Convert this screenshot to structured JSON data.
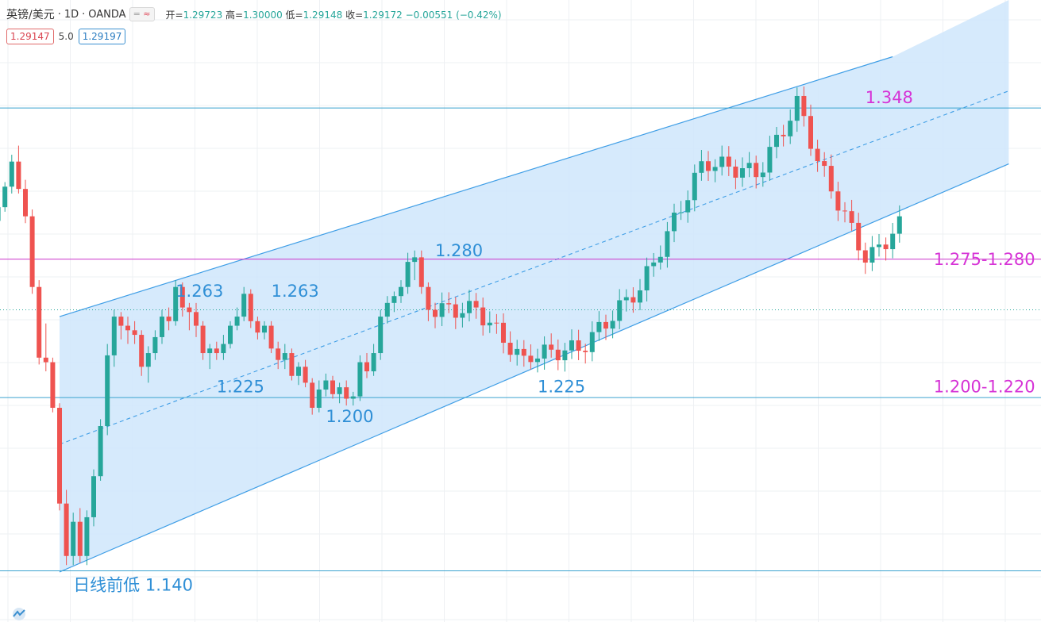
{
  "header": {
    "symbol": "英镑/美元",
    "sep1": "·",
    "interval": "1D",
    "sep2": "·",
    "source": "OANDA",
    "btn_left": "=",
    "btn_right": "≈",
    "open_label": "开=",
    "open_value": "1.29723",
    "high_label": "高=",
    "high_value": "1.30000",
    "low_label": "低=",
    "low_value": "1.29148",
    "close_label": "收=",
    "close_value": "1.29172",
    "change": "−0.00551 (−0.42%)"
  },
  "prices": {
    "sell": "1.29147",
    "spread": "5.0",
    "buy": "1.29197"
  },
  "colors": {
    "up": "#26a69a",
    "down": "#ef5350",
    "channel_fill": "#cfe6fb",
    "channel_line": "#3f9ee6",
    "hline_blue": "#3ba3cf",
    "hline_magenta": "#cc33cc",
    "label_blue": "#2f8fd6",
    "label_magenta": "#d633d6",
    "grid": "#eef0f3"
  },
  "chart_data": {
    "type": "candlestick",
    "title": "英镑/美元 · 1D · OANDA",
    "ylim": [
      1.125,
      1.37
    ],
    "horizontal_levels": [
      {
        "value": 1.3435,
        "color": "blue"
      },
      {
        "value": 1.2772,
        "color": "magenta"
      },
      {
        "value": 1.2165,
        "color": "blue"
      },
      {
        "value": 1.1405,
        "color": "blue"
      }
    ],
    "channel": {
      "upper": [
        [
          0,
          1.252
        ],
        [
          122,
          1.366
        ]
      ],
      "lower": [
        [
          0,
          1.14
        ],
        [
          139,
          1.319
        ]
      ],
      "mid": [
        [
          0,
          1.196
        ],
        [
          139,
          1.351
        ]
      ],
      "right_edge_bar": 139
    },
    "annotations": [
      {
        "text": "1.348",
        "bar": 118,
        "price": 1.3485,
        "color": "magenta"
      },
      {
        "text": "1.280",
        "bar": 55,
        "price": 1.2812,
        "color": "blue"
      },
      {
        "text": "1.263",
        "bar": 17,
        "price": 1.2635,
        "color": "blue"
      },
      {
        "text": "1.263",
        "bar": 31,
        "price": 1.2635,
        "color": "blue"
      },
      {
        "text": "1.225",
        "bar": 23,
        "price": 1.2215,
        "color": "blue"
      },
      {
        "text": "1.225",
        "bar": 70,
        "price": 1.2215,
        "color": "blue"
      },
      {
        "text": "1.200",
        "bar": 39,
        "price": 1.2085,
        "color": "blue"
      },
      {
        "text": "1.275-1.280",
        "bar": 128,
        "price": 1.2775,
        "color": "magenta"
      },
      {
        "text": "1.200-1.220",
        "bar": 128,
        "price": 1.2215,
        "color": "magenta"
      },
      {
        "text": "日线前低 1.140",
        "bar": 2,
        "price": 1.1345,
        "color": "blue"
      }
    ],
    "candles": [
      [
        1.289,
        1.296,
        1.287,
        1.294
      ],
      [
        1.294,
        1.302,
        1.292,
        1.3
      ],
      [
        1.3,
        1.311,
        1.298,
        1.309
      ],
      [
        1.309,
        1.323,
        1.306,
        1.32
      ],
      [
        1.32,
        1.327,
        1.306,
        1.308
      ],
      [
        1.308,
        1.312,
        1.293,
        1.296
      ],
      [
        1.296,
        1.299,
        1.262,
        1.265
      ],
      [
        1.265,
        1.268,
        1.231,
        1.234
      ],
      [
        1.234,
        1.249,
        1.228,
        1.232
      ],
      [
        1.232,
        1.234,
        1.21,
        1.212
      ],
      [
        1.212,
        1.214,
        1.167,
        1.17
      ],
      [
        1.17,
        1.176,
        1.143,
        1.147
      ],
      [
        1.147,
        1.166,
        1.143,
        1.162
      ],
      [
        1.162,
        1.168,
        1.144,
        1.147
      ],
      [
        1.147,
        1.167,
        1.143,
        1.164
      ],
      [
        1.164,
        1.185,
        1.16,
        1.182
      ],
      [
        1.182,
        1.207,
        1.18,
        1.204
      ],
      [
        1.204,
        1.24,
        1.2,
        1.235
      ],
      [
        1.235,
        1.255,
        1.23,
        1.252
      ],
      [
        1.252,
        1.254,
        1.242,
        1.248
      ],
      [
        1.248,
        1.252,
        1.24,
        1.246
      ],
      [
        1.246,
        1.25,
        1.24,
        1.244
      ],
      [
        1.244,
        1.246,
        1.226,
        1.23
      ],
      [
        1.23,
        1.239,
        1.223,
        1.236
      ],
      [
        1.236,
        1.246,
        1.233,
        1.243
      ],
      [
        1.243,
        1.255,
        1.24,
        1.252
      ],
      [
        1.252,
        1.256,
        1.246,
        1.25
      ],
      [
        1.25,
        1.268,
        1.248,
        1.265
      ],
      [
        1.265,
        1.267,
        1.252,
        1.256
      ],
      [
        1.256,
        1.258,
        1.246,
        1.254
      ],
      [
        1.254,
        1.258,
        1.243,
        1.248
      ],
      [
        1.248,
        1.25,
        1.233,
        1.236
      ],
      [
        1.236,
        1.24,
        1.229,
        1.238
      ],
      [
        1.238,
        1.241,
        1.233,
        1.236
      ],
      [
        1.236,
        1.244,
        1.233,
        1.24
      ],
      [
        1.24,
        1.25,
        1.238,
        1.248
      ],
      [
        1.248,
        1.256,
        1.246,
        1.252
      ],
      [
        1.252,
        1.265,
        1.25,
        1.262
      ],
      [
        1.262,
        1.264,
        1.247,
        1.25
      ],
      [
        1.25,
        1.252,
        1.242,
        1.245
      ],
      [
        1.245,
        1.25,
        1.242,
        1.248
      ],
      [
        1.248,
        1.25,
        1.236,
        1.238
      ],
      [
        1.238,
        1.241,
        1.229,
        1.233
      ],
      [
        1.233,
        1.24,
        1.229,
        1.236
      ],
      [
        1.236,
        1.238,
        1.224,
        1.226
      ],
      [
        1.226,
        1.232,
        1.222,
        1.23
      ],
      [
        1.23,
        1.233,
        1.221,
        1.223
      ],
      [
        1.223,
        1.225,
        1.209,
        1.212
      ],
      [
        1.212,
        1.224,
        1.21,
        1.22
      ],
      [
        1.22,
        1.227,
        1.217,
        1.224
      ],
      [
        1.224,
        1.226,
        1.216,
        1.218
      ],
      [
        1.218,
        1.223,
        1.214,
        1.221
      ],
      [
        1.221,
        1.224,
        1.213,
        1.216
      ],
      [
        1.216,
        1.219,
        1.213,
        1.217
      ],
      [
        1.217,
        1.235,
        1.215,
        1.232
      ],
      [
        1.232,
        1.236,
        1.225,
        1.228
      ],
      [
        1.228,
        1.24,
        1.226,
        1.236
      ],
      [
        1.236,
        1.255,
        1.233,
        1.252
      ],
      [
        1.252,
        1.261,
        1.249,
        1.258
      ],
      [
        1.258,
        1.263,
        1.254,
        1.261
      ],
      [
        1.261,
        1.268,
        1.258,
        1.265
      ],
      [
        1.265,
        1.28,
        1.262,
        1.276
      ],
      [
        1.276,
        1.281,
        1.268,
        1.278
      ],
      [
        1.278,
        1.281,
        1.262,
        1.265
      ],
      [
        1.265,
        1.267,
        1.25,
        1.255
      ]
    ]
  }
}
